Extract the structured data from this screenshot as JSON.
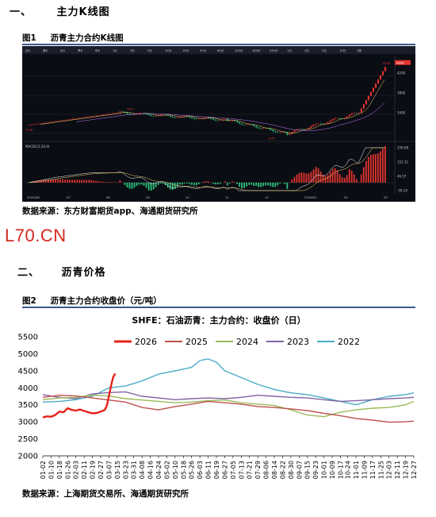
{
  "section1": {
    "number": "一、",
    "title": "主力K线图"
  },
  "figure1": {
    "label": "图1",
    "title": "沥青主力合约K线图",
    "source": "数据来源：东方财富期货app、海通期货研究所",
    "kline": {
      "toolbar": [
        "日K",
        "周K",
        "月K",
        "季K",
        "年K",
        "1分",
        "3分",
        "5分",
        "10分",
        "15分",
        "30分",
        "60分",
        "120分",
        "180分",
        "240分",
        "1日",
        "3日",
        "5日",
        "10日",
        "1周"
      ],
      "price_ticks": [
        "4200",
        "3800",
        "3400"
      ],
      "price_marks": {
        "high": "4328",
        "mid_high": "3421",
        "low_left": "3128",
        "low_right": "2957",
        "last": "4408"
      },
      "x_ticks": [
        "2025/06",
        "07",
        "08",
        "09",
        "10",
        "11",
        "12",
        "2026/01",
        "02",
        "03"
      ],
      "macd_label": "MACD(12,26,9)",
      "macd_ticks": [
        "258.08",
        "152.32",
        "46.57",
        "-59.19"
      ]
    }
  },
  "logo": {
    "text": "L70.CN"
  },
  "section2": {
    "number": "二、",
    "title": "沥青价格"
  },
  "figure2": {
    "label": "图2",
    "title": "沥青主力合约收盘价（元/吨）",
    "source": "数据来源：上海期货交易所、海通期货研究所"
  },
  "colors": {
    "2026": "#e8211b",
    "2025": "#c0504d",
    "2024": "#9bbb59",
    "2023": "#8064a2",
    "2022": "#4bacc6"
  },
  "chart_data": {
    "type": "line",
    "title": "SHFE：石油沥青：主力合约：收盘价（日）",
    "ylim": [
      2000,
      5500
    ],
    "yticks": [
      2000,
      2500,
      3000,
      3500,
      4000,
      4500,
      5000,
      5500
    ],
    "xticks": [
      "01-02",
      "01-10",
      "01-18",
      "01-26",
      "02-03",
      "02-11",
      "02-19",
      "02-27",
      "03-07",
      "03-15",
      "03-23",
      "03-31",
      "04-08",
      "04-16",
      "04-24",
      "05-02",
      "05-10",
      "05-18",
      "05-26",
      "06-03",
      "06-11",
      "06-19",
      "06-27",
      "07-05",
      "07-13",
      "07-21",
      "07-29",
      "08-06",
      "08-14",
      "08-22",
      "08-30",
      "09-07",
      "09-15",
      "09-23",
      "10-01",
      "10-09",
      "10-17",
      "10-24",
      "11-01",
      "11-09",
      "11-17",
      "11-25",
      "12-03",
      "12-11",
      "12-19",
      "12-27"
    ],
    "legend_position": "top",
    "series": [
      {
        "name": "2026",
        "x": [
          "01-02",
          "01-06",
          "01-10",
          "01-14",
          "01-18",
          "01-22",
          "01-26",
          "01-30",
          "02-03",
          "02-07",
          "02-11",
          "02-15",
          "02-19",
          "02-23",
          "02-27",
          "03-03",
          "03-05",
          "03-07",
          "03-09",
          "03-11",
          "03-13"
        ],
        "values": [
          3130,
          3160,
          3150,
          3200,
          3300,
          3280,
          3400,
          3350,
          3330,
          3360,
          3320,
          3280,
          3250,
          3260,
          3300,
          3350,
          3480,
          3750,
          4050,
          4300,
          4420
        ]
      },
      {
        "name": "2025",
        "x": [
          "01-02",
          "01-18",
          "02-03",
          "02-19",
          "03-07",
          "03-23",
          "04-08",
          "04-24",
          "05-10",
          "05-26",
          "06-11",
          "06-27",
          "07-13",
          "07-29",
          "08-14",
          "08-30",
          "09-15",
          "10-01",
          "10-17",
          "11-01",
          "11-17",
          "12-03",
          "12-19",
          "12-27"
        ],
        "values": [
          3720,
          3780,
          3760,
          3700,
          3640,
          3580,
          3420,
          3350,
          3450,
          3520,
          3600,
          3560,
          3520,
          3450,
          3420,
          3380,
          3330,
          3250,
          3180,
          3100,
          3050,
          2990,
          3000,
          3020
        ]
      },
      {
        "name": "2024",
        "x": [
          "01-02",
          "01-18",
          "02-03",
          "02-19",
          "03-07",
          "03-23",
          "04-08",
          "04-24",
          "05-10",
          "05-26",
          "06-11",
          "06-27",
          "07-13",
          "07-29",
          "08-14",
          "08-30",
          "09-15",
          "10-01",
          "10-17",
          "11-01",
          "11-17",
          "12-03",
          "12-19",
          "12-27"
        ],
        "values": [
          3650,
          3700,
          3720,
          3780,
          3760,
          3680,
          3640,
          3600,
          3560,
          3580,
          3620,
          3640,
          3560,
          3520,
          3480,
          3350,
          3200,
          3150,
          3280,
          3350,
          3400,
          3420,
          3500,
          3600
        ]
      },
      {
        "name": "2023",
        "x": [
          "01-02",
          "01-18",
          "02-03",
          "02-19",
          "03-07",
          "03-23",
          "04-08",
          "04-24",
          "05-10",
          "05-26",
          "06-11",
          "06-27",
          "07-13",
          "07-29",
          "08-14",
          "08-30",
          "09-15",
          "10-01",
          "10-17",
          "11-01",
          "11-17",
          "12-03",
          "12-19",
          "12-27"
        ],
        "values": [
          3800,
          3720,
          3680,
          3820,
          3860,
          3880,
          3750,
          3700,
          3650,
          3680,
          3700,
          3680,
          3720,
          3780,
          3750,
          3720,
          3700,
          3650,
          3600,
          3620,
          3650,
          3680,
          3700,
          3720
        ]
      },
      {
        "name": "2022",
        "x": [
          "01-02",
          "01-18",
          "02-03",
          "02-19",
          "03-07",
          "03-23",
          "04-08",
          "04-24",
          "05-10",
          "05-26",
          "06-03",
          "06-11",
          "06-19",
          "06-27",
          "07-13",
          "07-29",
          "08-14",
          "08-30",
          "09-15",
          "10-01",
          "10-17",
          "11-01",
          "11-17",
          "12-03",
          "12-19",
          "12-27"
        ],
        "values": [
          3580,
          3600,
          3650,
          3750,
          4000,
          4050,
          4200,
          4400,
          4500,
          4600,
          4800,
          4850,
          4750,
          4500,
          4300,
          4100,
          3950,
          3850,
          3800,
          3700,
          3600,
          3500,
          3650,
          3750,
          3800,
          3850
        ]
      }
    ]
  }
}
